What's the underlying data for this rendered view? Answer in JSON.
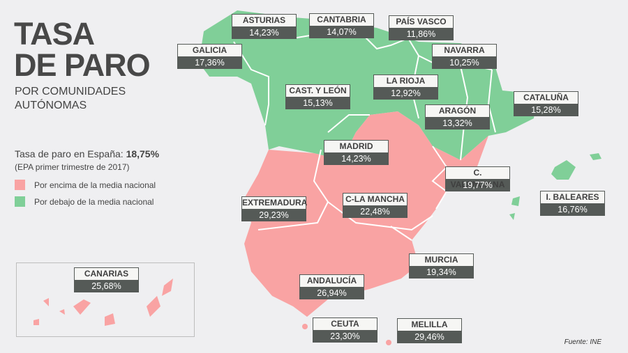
{
  "title_line1": "TASA",
  "title_line2": "DE PARO",
  "subtitle_line1": "POR COMUNIDADES",
  "subtitle_line2": "AUTÓNOMAS",
  "national_label": "Tasa de paro en España: ",
  "national_value": "18,75%",
  "note": "(EPA primer trimestre de 2017)",
  "legend": [
    {
      "label": "Por encima de la media nacional",
      "color": "#f9a3a3"
    },
    {
      "label": "Por debajo de la media nacional",
      "color": "#80cf98"
    }
  ],
  "colors": {
    "above": "#f9a3a3",
    "below": "#80cf98",
    "label_dark": "#555a57",
    "background": "#efeff1"
  },
  "regions": [
    {
      "name": "ASTURIAS",
      "value": "14,23%",
      "status": "below"
    },
    {
      "name": "CANTABRIA",
      "value": "14,07%",
      "status": "below"
    },
    {
      "name": "PAÍS VASCO",
      "value": "11,86%",
      "status": "below"
    },
    {
      "name": "GALICIA",
      "value": "17,36%",
      "status": "below"
    },
    {
      "name": "NAVARRA",
      "value": "10,25%",
      "status": "below"
    },
    {
      "name": "LA RIOJA",
      "value": "12,92%",
      "status": "below"
    },
    {
      "name": "CAST. Y LEÓN",
      "value": "15,13%",
      "status": "below"
    },
    {
      "name": "ARAGÓN",
      "value": "13,32%",
      "status": "below"
    },
    {
      "name": "CATALUÑA",
      "value": "15,28%",
      "status": "below"
    },
    {
      "name": "MADRID",
      "value": "14,23%",
      "status": "below"
    },
    {
      "name": "C. VALENCIANA",
      "value": "19,77%",
      "status": "above"
    },
    {
      "name": "I. BALEARES",
      "value": "16,76%",
      "status": "below"
    },
    {
      "name": "EXTREMADURA",
      "value": "29,23%",
      "status": "above"
    },
    {
      "name": "C-LA MANCHA",
      "value": "22,48%",
      "status": "above"
    },
    {
      "name": "CANARIAS",
      "value": "25,68%",
      "status": "above"
    },
    {
      "name": "MURCIA",
      "value": "19,34%",
      "status": "above"
    },
    {
      "name": "ANDALUCÍA",
      "value": "26,94%",
      "status": "above"
    },
    {
      "name": "CEUTA",
      "value": "23,30%",
      "status": "above"
    },
    {
      "name": "MELILLA",
      "value": "29,46%",
      "status": "above"
    }
  ],
  "source": "Fuente: INE"
}
